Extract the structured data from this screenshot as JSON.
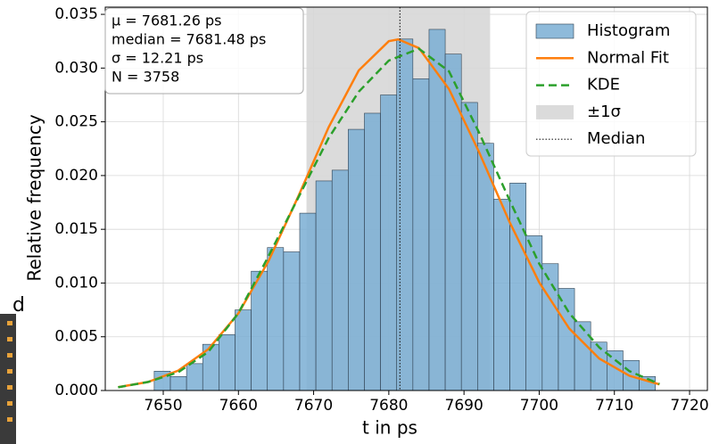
{
  "chart_data": {
    "type": "histogram",
    "xlabel": "t in ps",
    "ylabel": "Relative frequency",
    "xlim": [
      7642.29,
      7722.37
    ],
    "ylim": [
      0,
      0.03567
    ],
    "xticks": [
      7650,
      7660,
      7670,
      7680,
      7690,
      7700,
      7710,
      7720
    ],
    "yticks": [
      {
        "value": 0,
        "label": "0.000"
      },
      {
        "value": 0.005,
        "label": "0.005"
      },
      {
        "value": 0.01,
        "label": "0.010"
      },
      {
        "value": 0.015,
        "label": "0.015"
      },
      {
        "value": 0.02,
        "label": "0.020"
      },
      {
        "value": 0.025,
        "label": "0.025"
      },
      {
        "value": 0.03,
        "label": "0.030"
      },
      {
        "value": 0.035,
        "label": "0.035"
      }
    ],
    "grid": true,
    "legend": "upper right",
    "annotations": [
      "μ = 7681.26 ps",
      "median = 7681.48 ps",
      "σ = 12.21 ps",
      "N = 3758"
    ],
    "fragment": "d",
    "series": [
      {
        "name": "Histogram",
        "type": "histogram",
        "color": "#7aaed3",
        "bins": [
          7648.8,
          7650.95,
          7653.1,
          7655.25,
          7657.4,
          7659.55,
          7661.7,
          7663.85,
          7666.0,
          7668.15,
          7670.3,
          7672.45,
          7674.6,
          7676.75,
          7678.9,
          7681.05,
          7683.2,
          7685.35,
          7687.5,
          7689.65,
          7691.8,
          7693.95,
          7696.1,
          7698.25,
          7700.4,
          7702.55,
          7704.7,
          7706.85,
          7709.0,
          7711.15,
          7713.3,
          7715.45
        ],
        "values": [
          0.0018,
          0.0013,
          0.0025,
          0.0043,
          0.0052,
          0.0075,
          0.0111,
          0.0133,
          0.0129,
          0.0165,
          0.0195,
          0.0205,
          0.0243,
          0.0258,
          0.0275,
          0.0327,
          0.029,
          0.0336,
          0.0313,
          0.0268,
          0.023,
          0.0178,
          0.0193,
          0.0144,
          0.0118,
          0.0095,
          0.0064,
          0.0045,
          0.0037,
          0.0028,
          0.0013
        ]
      },
      {
        "name": "Normal Fit",
        "type": "line",
        "color": "#ff7f0e",
        "x": [
          7644,
          7648,
          7652,
          7656,
          7660,
          7664,
          7668,
          7672,
          7676,
          7680,
          7681.26,
          7684,
          7688,
          7692,
          7696,
          7700,
          7704,
          7708,
          7712,
          7716
        ],
        "values": [
          0.00031,
          0.0008,
          0.00185,
          0.00385,
          0.00718,
          0.01204,
          0.01812,
          0.0245,
          0.02978,
          0.0325,
          0.03267,
          0.03186,
          0.02805,
          0.02219,
          0.01576,
          0.01006,
          0.00576,
          0.00297,
          0.00137,
          0.00057
        ]
      },
      {
        "name": "KDE",
        "type": "line",
        "dashed": true,
        "color": "#2ca02c",
        "x": [
          7644,
          7648,
          7652,
          7656,
          7660,
          7664,
          7668,
          7672,
          7676,
          7680,
          7684,
          7688,
          7692,
          7696,
          7700,
          7704,
          7708,
          7712,
          7716
        ],
        "values": [
          0.0003,
          0.0008,
          0.0017,
          0.0036,
          0.0072,
          0.0125,
          0.018,
          0.0235,
          0.0278,
          0.0307,
          0.0318,
          0.0297,
          0.024,
          0.0178,
          0.0118,
          0.0072,
          0.004,
          0.0018,
          0.0006
        ]
      },
      {
        "name": "±1σ",
        "type": "band",
        "color": "#b0b0b0",
        "range": [
          7669.05,
          7693.47
        ]
      },
      {
        "name": "Median",
        "type": "vline",
        "color": "#222222",
        "value": 7681.48
      }
    ]
  }
}
